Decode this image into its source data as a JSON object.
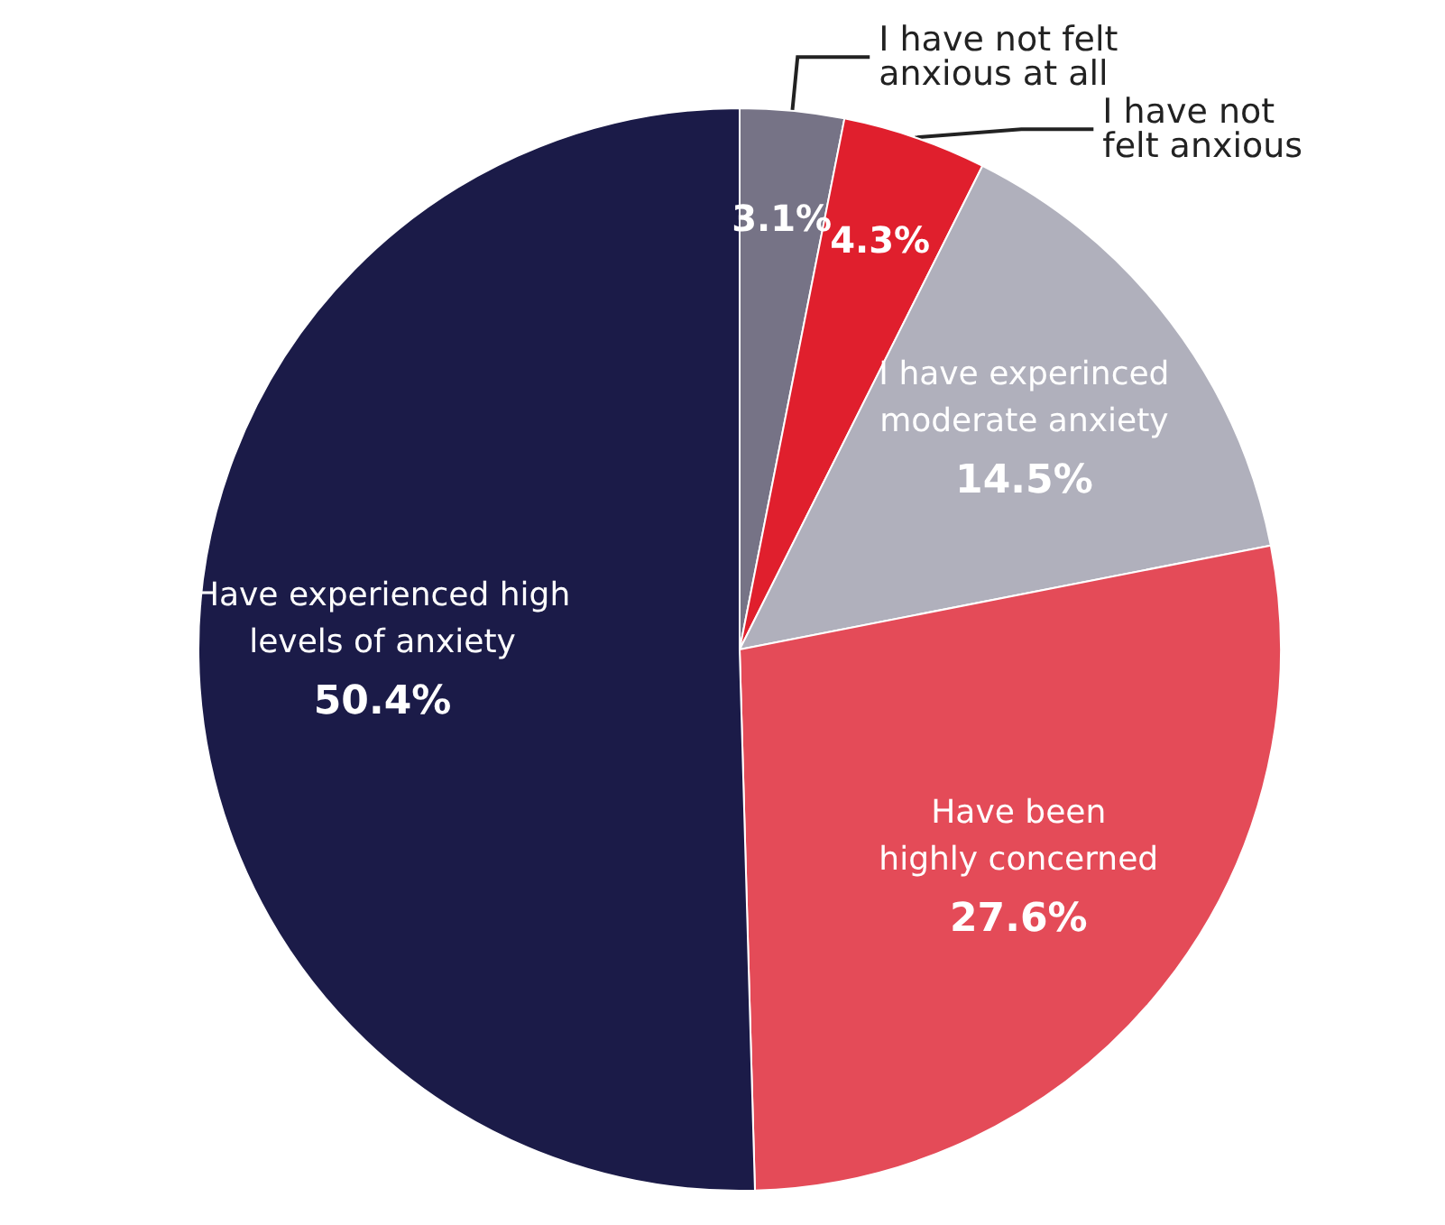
{
  "chart_data": {
    "type": "pie",
    "categories": [
      "I have not felt anxious at all",
      "I have not felt anxious",
      "I have experinced moderate anxiety",
      "Have been highly concerned",
      "Have experienced high levels of anxiety"
    ],
    "values": [
      3.1,
      4.3,
      14.5,
      27.6,
      50.4
    ],
    "colors": [
      "#767386",
      "#e01f2d",
      "#b0b0bc",
      "#e44b58",
      "#1b1b48"
    ],
    "value_labels": [
      "3.1%",
      "4.3%",
      "14.5%",
      "27.6%",
      "50.4%"
    ]
  }
}
